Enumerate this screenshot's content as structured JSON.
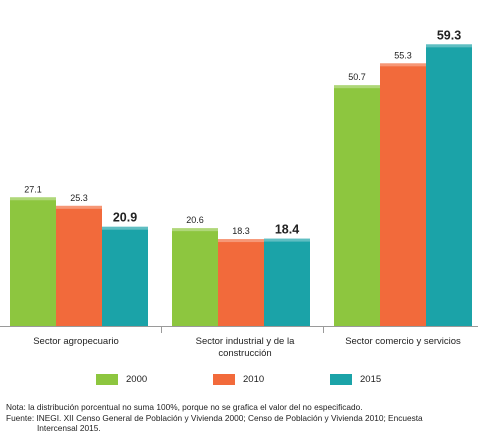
{
  "chart_data": {
    "type": "bar",
    "categories": [
      "Sector agropecuario",
      "Sector industrial y de la construcción",
      "Sector comercio y servicios"
    ],
    "category_labels": [
      "Sector agropecuario",
      "Sector industrial y de la\nconstrucción",
      "Sector comercio y servicios"
    ],
    "series": [
      {
        "name": "2000",
        "color": "#8dc63f",
        "values": [
          27.1,
          20.6,
          50.7
        ],
        "labels": [
          "27.1",
          "20.6",
          "50.7"
        ]
      },
      {
        "name": "2010",
        "color": "#f26a3b",
        "values": [
          25.3,
          18.3,
          55.3
        ],
        "labels": [
          "25.3",
          "18.3",
          "55.3"
        ]
      },
      {
        "name": "2015",
        "color": "#1ba3a8",
        "values": [
          20.9,
          18.4,
          59.3
        ],
        "labels": [
          "20.9",
          "18.4",
          "59.3"
        ]
      }
    ],
    "highlight_series": "2015",
    "ylim": [
      0,
      64
    ],
    "grid": false,
    "legend_position": "bottom"
  },
  "notes": {
    "line1": "Nota: la distribución porcentual no suma 100%, porque no se grafica el valor del no especificado.",
    "line2": "Fuente: INEGI. XII Censo General de Población y Vivienda 2000; Censo de Población y Vivienda 2010; Encuesta",
    "line3": "Intercensal 2015."
  }
}
